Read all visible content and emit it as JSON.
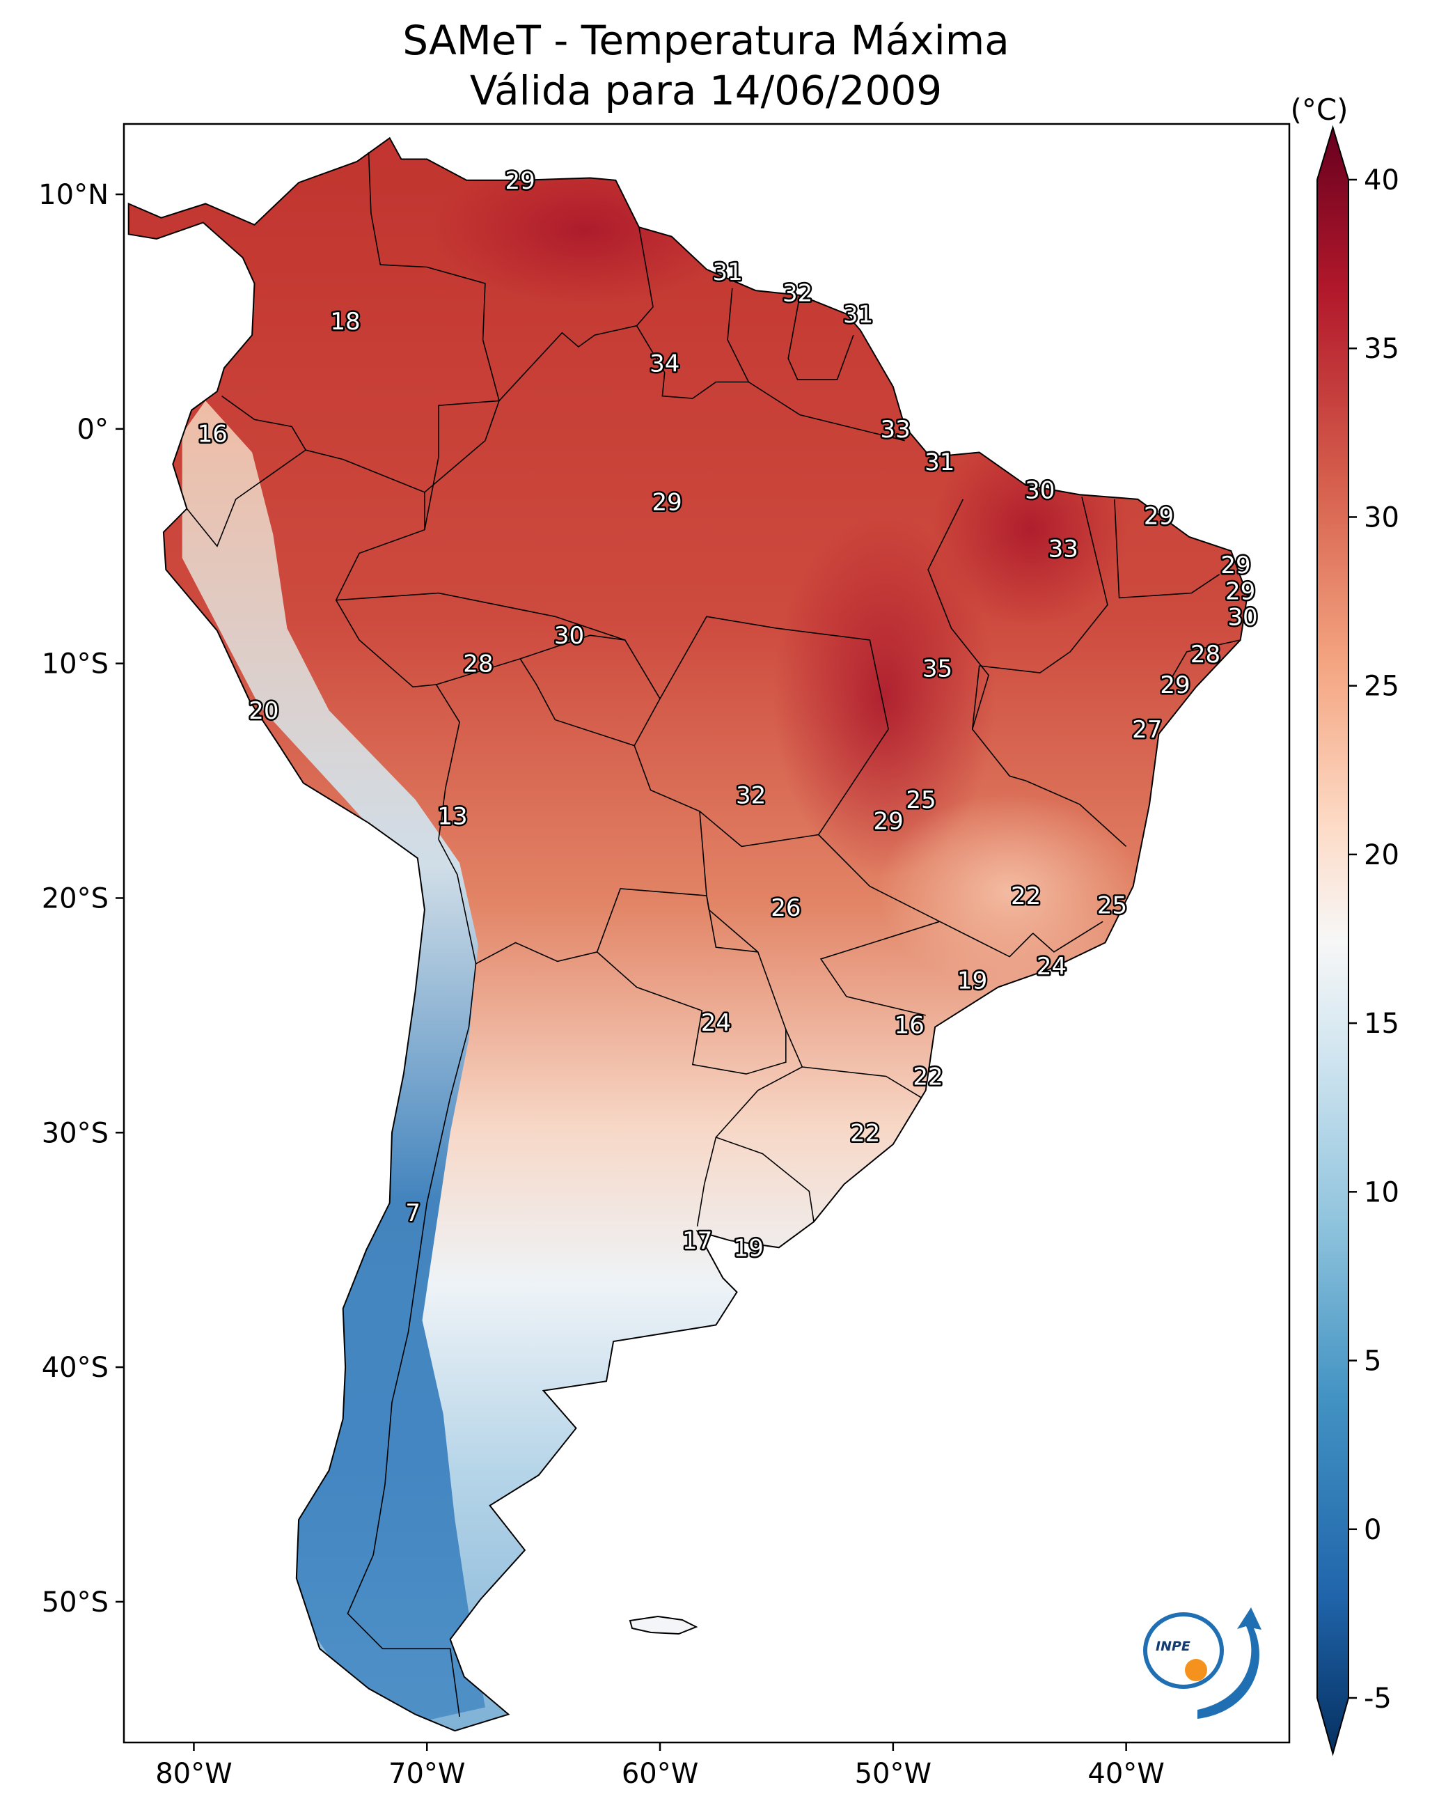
{
  "title": {
    "line1": "SAMeT - Temperatura Máxima",
    "line2": "Válida para 14/06/2009"
  },
  "lat_ticks": [
    {
      "value": 10,
      "label": "10°N"
    },
    {
      "value": 0,
      "label": "0°"
    },
    {
      "value": -10,
      "label": "10°S"
    },
    {
      "value": -20,
      "label": "20°S"
    },
    {
      "value": -30,
      "label": "30°S"
    },
    {
      "value": -40,
      "label": "40°S"
    },
    {
      "value": -50,
      "label": "50°S"
    }
  ],
  "lon_ticks": [
    {
      "value": -80,
      "label": "80°W"
    },
    {
      "value": -70,
      "label": "70°W"
    },
    {
      "value": -60,
      "label": "60°W"
    },
    {
      "value": -50,
      "label": "50°W"
    },
    {
      "value": -40,
      "label": "40°W"
    }
  ],
  "map_extent": {
    "lon": [
      -83,
      -33
    ],
    "lat": [
      -56,
      13
    ]
  },
  "colorbar": {
    "unit": "(°C)",
    "range": [
      -5,
      40
    ],
    "extend": "both",
    "colormap": "RdBu_r",
    "ticks": [
      {
        "value": 40,
        "label": "40"
      },
      {
        "value": 35,
        "label": "35"
      },
      {
        "value": 30,
        "label": "30"
      },
      {
        "value": 25,
        "label": "25"
      },
      {
        "value": 20,
        "label": "20"
      },
      {
        "value": 15,
        "label": "15"
      },
      {
        "value": 10,
        "label": "10"
      },
      {
        "value": 5,
        "label": "5"
      },
      {
        "value": 0,
        "label": "0"
      },
      {
        "value": -5,
        "label": "-5"
      }
    ],
    "colors": [
      "#053061",
      "#2166ac",
      "#4393c3",
      "#92c5de",
      "#d1e5f0",
      "#f7f7f7",
      "#fddbc7",
      "#f4a582",
      "#d6604d",
      "#b2182b",
      "#67001f"
    ]
  },
  "city_labels": [
    {
      "lon": -66.0,
      "lat": 10.6,
      "text": "29"
    },
    {
      "lon": -57.1,
      "lat": 6.7,
      "text": "31"
    },
    {
      "lon": -54.1,
      "lat": 5.8,
      "text": "32"
    },
    {
      "lon": -51.5,
      "lat": 4.9,
      "text": "31"
    },
    {
      "lon": -73.5,
      "lat": 4.6,
      "text": "18"
    },
    {
      "lon": -59.8,
      "lat": 2.8,
      "text": "34"
    },
    {
      "lon": -79.2,
      "lat": -0.2,
      "text": "16"
    },
    {
      "lon": -49.9,
      "lat": 0.0,
      "text": "33"
    },
    {
      "lon": -48.0,
      "lat": -1.4,
      "text": "31"
    },
    {
      "lon": -43.7,
      "lat": -2.6,
      "text": "30"
    },
    {
      "lon": -59.7,
      "lat": -3.1,
      "text": "29"
    },
    {
      "lon": -38.6,
      "lat": -3.7,
      "text": "29"
    },
    {
      "lon": -42.7,
      "lat": -5.1,
      "text": "33"
    },
    {
      "lon": -35.3,
      "lat": -5.8,
      "text": "29"
    },
    {
      "lon": -35.1,
      "lat": -6.9,
      "text": "29"
    },
    {
      "lon": -35.0,
      "lat": -8.0,
      "text": "30"
    },
    {
      "lon": -63.9,
      "lat": -8.8,
      "text": "30"
    },
    {
      "lon": -36.6,
      "lat": -9.6,
      "text": "28"
    },
    {
      "lon": -67.8,
      "lat": -10.0,
      "text": "28"
    },
    {
      "lon": -48.1,
      "lat": -10.2,
      "text": "35"
    },
    {
      "lon": -37.9,
      "lat": -10.9,
      "text": "29"
    },
    {
      "lon": -77.0,
      "lat": -12.0,
      "text": "20"
    },
    {
      "lon": -39.1,
      "lat": -12.8,
      "text": "27"
    },
    {
      "lon": -48.8,
      "lat": -15.8,
      "text": "25"
    },
    {
      "lon": -56.1,
      "lat": -15.6,
      "text": "32"
    },
    {
      "lon": -50.2,
      "lat": -16.7,
      "text": "29"
    },
    {
      "lon": -68.9,
      "lat": -16.5,
      "text": "13"
    },
    {
      "lon": -44.3,
      "lat": -19.9,
      "text": "22"
    },
    {
      "lon": -40.6,
      "lat": -20.3,
      "text": "25"
    },
    {
      "lon": -54.6,
      "lat": -20.4,
      "text": "26"
    },
    {
      "lon": -43.2,
      "lat": -22.9,
      "text": "24"
    },
    {
      "lon": -46.6,
      "lat": -23.5,
      "text": "19"
    },
    {
      "lon": -57.6,
      "lat": -25.3,
      "text": "24"
    },
    {
      "lon": -49.3,
      "lat": -25.4,
      "text": "16"
    },
    {
      "lon": -48.5,
      "lat": -27.6,
      "text": "22"
    },
    {
      "lon": -51.2,
      "lat": -30.0,
      "text": "22"
    },
    {
      "lon": -70.6,
      "lat": -33.4,
      "text": "7"
    },
    {
      "lon": -58.4,
      "lat": -34.6,
      "text": "17"
    },
    {
      "lon": -56.2,
      "lat": -34.9,
      "text": "19"
    }
  ],
  "logo": {
    "text": "INPE"
  }
}
